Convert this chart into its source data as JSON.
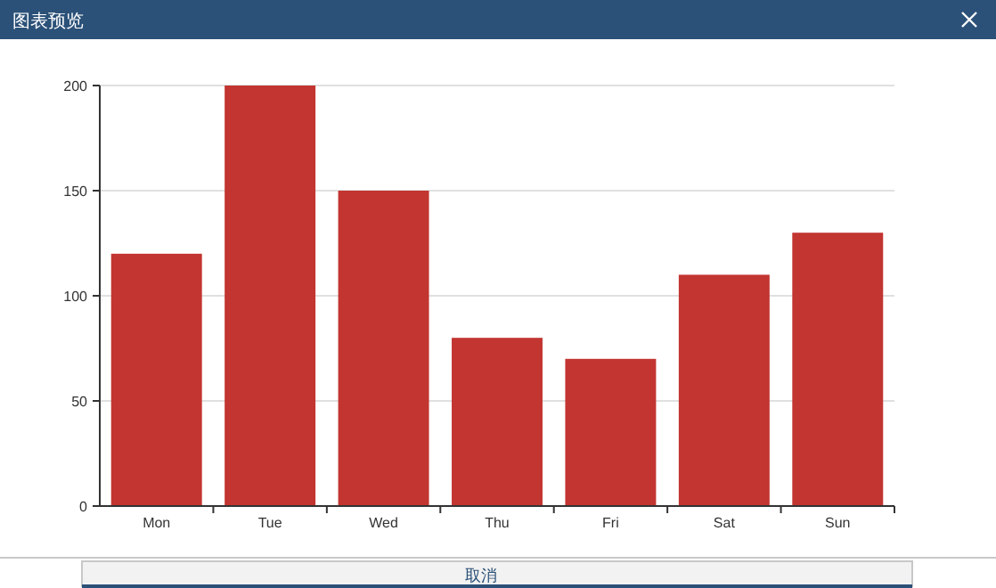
{
  "chart_data": {
    "type": "bar",
    "title": "图表预览",
    "categories": [
      "Mon",
      "Tue",
      "Wed",
      "Thu",
      "Fri",
      "Sat",
      "Sun"
    ],
    "values": [
      120,
      200,
      150,
      80,
      70,
      110,
      130
    ],
    "color": "#c23531",
    "ylim": [
      0,
      200
    ],
    "yticks": [
      0,
      50,
      100,
      150,
      200
    ],
    "grid": "y",
    "annotations": [
      "取消"
    ]
  }
}
